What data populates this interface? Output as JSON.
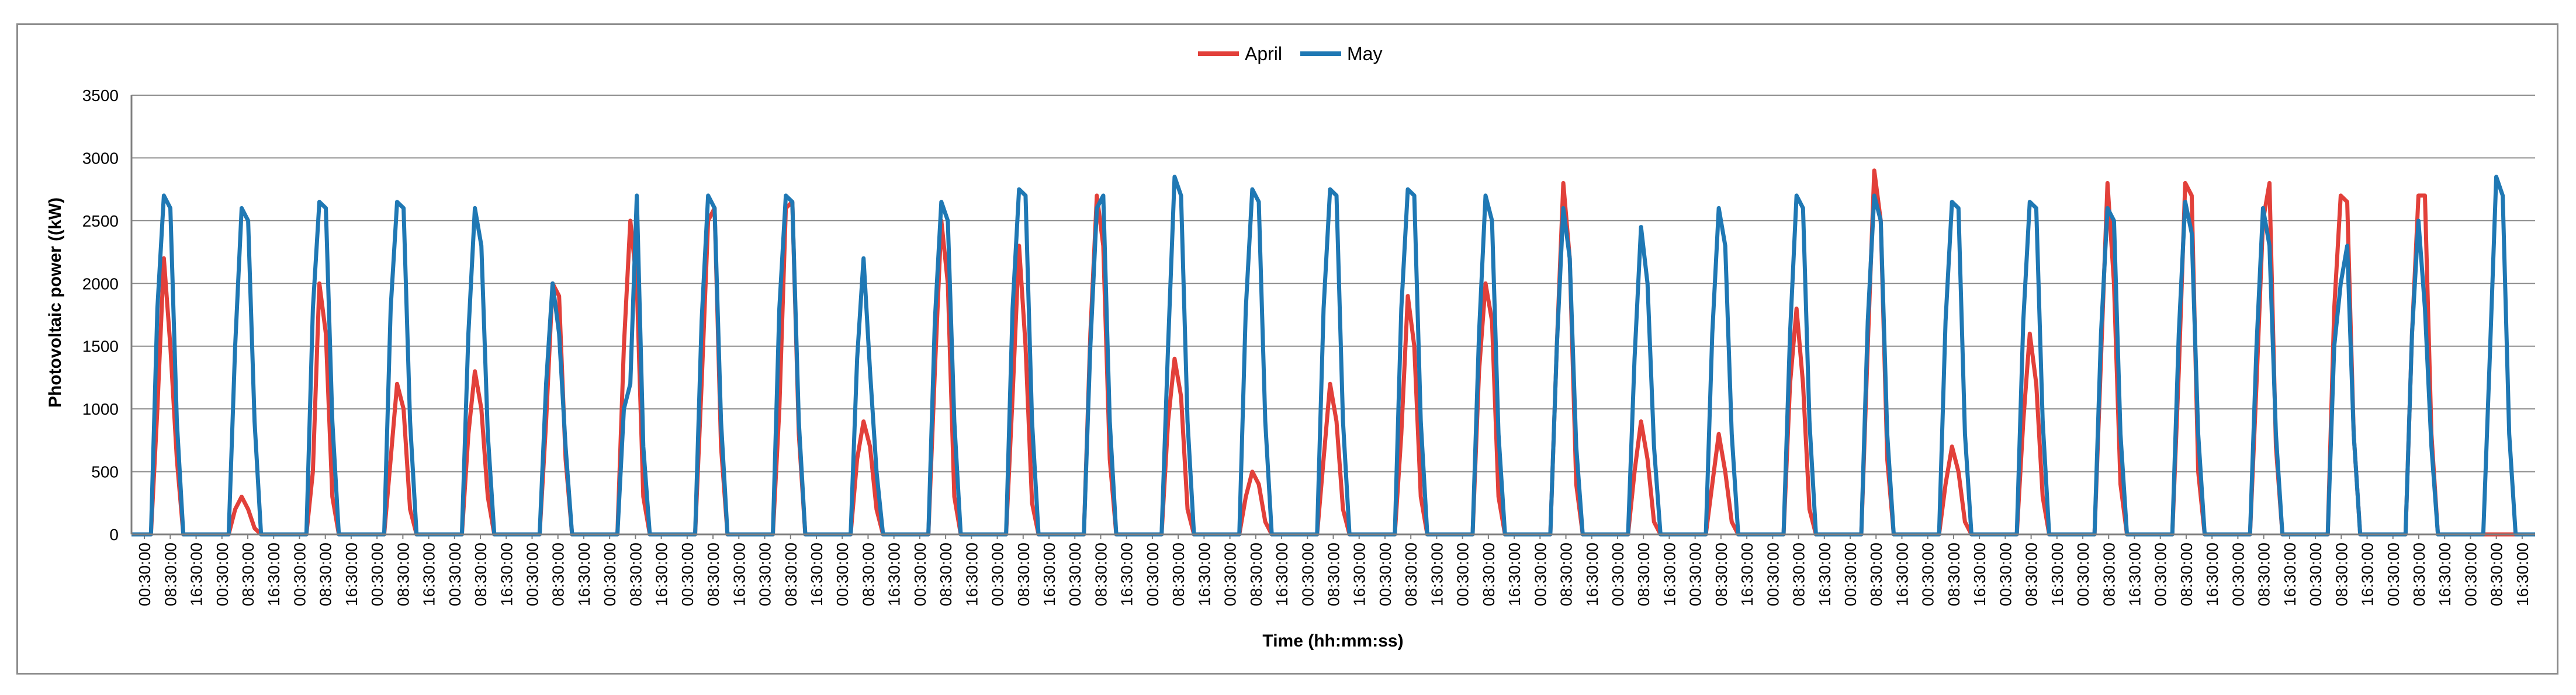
{
  "chart_data": {
    "type": "line",
    "xlabel": "Time (hh:mm:ss)",
    "ylabel": "Photovoltaic power ((kW)",
    "ylim": [
      0,
      3500
    ],
    "yticks": [
      0,
      500,
      1000,
      1500,
      2000,
      2500,
      3000,
      3500
    ],
    "grid": true,
    "legend_position": "top-center",
    "x_tick_labels": [
      "00:30:00",
      "08:30:00",
      "16:30:00"
    ],
    "x_tick_count": 93,
    "sample_interval_hours": 2,
    "x_start": "00:30:00",
    "days": 31,
    "series": [
      {
        "name": "April",
        "color": "#e2403a",
        "values": [
          0,
          0,
          0,
          0,
          1000,
          2200,
          1500,
          600,
          0,
          0,
          0,
          0,
          0,
          0,
          0,
          0,
          200,
          300,
          200,
          50,
          0,
          0,
          0,
          0,
          0,
          0,
          0,
          0,
          500,
          2000,
          1600,
          300,
          0,
          0,
          0,
          0,
          0,
          0,
          0,
          0,
          600,
          1200,
          1000,
          200,
          0,
          0,
          0,
          0,
          0,
          0,
          0,
          0,
          800,
          1300,
          1000,
          300,
          0,
          0,
          0,
          0,
          0,
          0,
          0,
          0,
          900,
          2000,
          1900,
          600,
          0,
          0,
          0,
          0,
          0,
          0,
          0,
          0,
          1500,
          2500,
          2000,
          300,
          0,
          0,
          0,
          0,
          0,
          0,
          0,
          0,
          1200,
          2500,
          2600,
          700,
          0,
          0,
          0,
          0,
          0,
          0,
          0,
          0,
          1000,
          2600,
          2650,
          800,
          0,
          0,
          0,
          0,
          0,
          0,
          0,
          0,
          600,
          900,
          700,
          200,
          0,
          0,
          0,
          0,
          0,
          0,
          0,
          0,
          1300,
          2500,
          2000,
          300,
          0,
          0,
          0,
          0,
          0,
          0,
          0,
          0,
          1100,
          2300,
          1500,
          250,
          0,
          0,
          0,
          0,
          0,
          0,
          0,
          0,
          1600,
          2700,
          2300,
          600,
          0,
          0,
          0,
          0,
          0,
          0,
          0,
          0,
          900,
          1400,
          1100,
          200,
          0,
          0,
          0,
          0,
          0,
          0,
          0,
          0,
          300,
          500,
          400,
          100,
          0,
          0,
          0,
          0,
          0,
          0,
          0,
          0,
          600,
          1200,
          900,
          200,
          0,
          0,
          0,
          0,
          0,
          0,
          0,
          0,
          800,
          1900,
          1500,
          300,
          0,
          0,
          0,
          0,
          0,
          0,
          0,
          0,
          1300,
          2000,
          1700,
          300,
          0,
          0,
          0,
          0,
          0,
          0,
          0,
          0,
          1500,
          2800,
          2200,
          400,
          0,
          0,
          0,
          0,
          0,
          0,
          0,
          0,
          500,
          900,
          600,
          100,
          0,
          0,
          0,
          0,
          0,
          0,
          0,
          0,
          400,
          800,
          500,
          100,
          0,
          0,
          0,
          0,
          0,
          0,
          0,
          0,
          1200,
          1800,
          1200,
          200,
          0,
          0,
          0,
          0,
          0,
          0,
          0,
          0,
          1500,
          2900,
          2500,
          600,
          0,
          0,
          0,
          0,
          0,
          0,
          0,
          0,
          400,
          700,
          500,
          100,
          0,
          0,
          0,
          0,
          0,
          0,
          0,
          0,
          900,
          1600,
          1200,
          300,
          0,
          0,
          0,
          0,
          0,
          0,
          0,
          0,
          1400,
          2800,
          2000,
          400,
          0,
          0,
          0,
          0,
          0,
          0,
          0,
          0,
          1300,
          2800,
          2700,
          500,
          0,
          0,
          0,
          0,
          0,
          0,
          0,
          0,
          1200,
          2500,
          2800,
          700,
          0,
          0,
          0,
          0,
          0,
          0,
          0,
          0,
          1800,
          2700,
          2650,
          800,
          0,
          0,
          0,
          0,
          0,
          0,
          0,
          0,
          1600,
          2700,
          2700,
          800,
          0,
          0,
          0,
          0,
          0,
          0,
          0,
          0,
          0,
          0,
          0,
          0,
          0,
          0,
          0,
          0
        ]
      },
      {
        "name": "May",
        "color": "#1f78b4",
        "values": [
          0,
          0,
          0,
          0,
          1800,
          2700,
          2600,
          900,
          0,
          0,
          0,
          0,
          0,
          0,
          0,
          0,
          1500,
          2600,
          2500,
          900,
          0,
          0,
          0,
          0,
          0,
          0,
          0,
          0,
          1800,
          2650,
          2600,
          900,
          0,
          0,
          0,
          0,
          0,
          0,
          0,
          0,
          1800,
          2650,
          2600,
          900,
          0,
          0,
          0,
          0,
          0,
          0,
          0,
          0,
          1600,
          2600,
          2300,
          800,
          0,
          0,
          0,
          0,
          0,
          0,
          0,
          0,
          1200,
          2000,
          1600,
          700,
          0,
          0,
          0,
          0,
          0,
          0,
          0,
          0,
          1000,
          1200,
          2700,
          700,
          0,
          0,
          0,
          0,
          0,
          0,
          0,
          0,
          1700,
          2700,
          2600,
          900,
          0,
          0,
          0,
          0,
          0,
          0,
          0,
          0,
          1800,
          2700,
          2650,
          900,
          0,
          0,
          0,
          0,
          0,
          0,
          0,
          0,
          1400,
          2200,
          1300,
          500,
          0,
          0,
          0,
          0,
          0,
          0,
          0,
          0,
          1700,
          2650,
          2500,
          900,
          0,
          0,
          0,
          0,
          0,
          0,
          0,
          0,
          1800,
          2750,
          2700,
          900,
          0,
          0,
          0,
          0,
          0,
          0,
          0,
          0,
          1500,
          2600,
          2700,
          900,
          0,
          0,
          0,
          0,
          0,
          0,
          0,
          0,
          1500,
          2850,
          2700,
          900,
          0,
          0,
          0,
          0,
          0,
          0,
          0,
          0,
          1800,
          2750,
          2650,
          900,
          0,
          0,
          0,
          0,
          0,
          0,
          0,
          0,
          1800,
          2750,
          2700,
          900,
          0,
          0,
          0,
          0,
          0,
          0,
          0,
          0,
          1800,
          2750,
          2700,
          900,
          0,
          0,
          0,
          0,
          0,
          0,
          0,
          0,
          1600,
          2700,
          2500,
          800,
          0,
          0,
          0,
          0,
          0,
          0,
          0,
          0,
          1500,
          2600,
          2200,
          700,
          0,
          0,
          0,
          0,
          0,
          0,
          0,
          0,
          1400,
          2450,
          2000,
          700,
          0,
          0,
          0,
          0,
          0,
          0,
          0,
          0,
          1600,
          2600,
          2300,
          800,
          0,
          0,
          0,
          0,
          0,
          0,
          0,
          0,
          1600,
          2700,
          2600,
          900,
          0,
          0,
          0,
          0,
          0,
          0,
          0,
          0,
          1700,
          2700,
          2500,
          800,
          0,
          0,
          0,
          0,
          0,
          0,
          0,
          0,
          1700,
          2650,
          2600,
          800,
          0,
          0,
          0,
          0,
          0,
          0,
          0,
          0,
          1700,
          2650,
          2600,
          900,
          0,
          0,
          0,
          0,
          0,
          0,
          0,
          0,
          1600,
          2600,
          2500,
          800,
          0,
          0,
          0,
          0,
          0,
          0,
          0,
          0,
          1600,
          2650,
          2400,
          800,
          0,
          0,
          0,
          0,
          0,
          0,
          0,
          0,
          1500,
          2600,
          2300,
          800,
          0,
          0,
          0,
          0,
          0,
          0,
          0,
          0,
          1500,
          2000,
          2300,
          800,
          0,
          0,
          0,
          0,
          0,
          0,
          0,
          0,
          1600,
          2500,
          1800,
          700,
          0,
          0,
          0,
          0,
          0,
          0,
          0,
          0,
          1400,
          2850,
          2700,
          800,
          0,
          0,
          0,
          0
        ]
      }
    ]
  }
}
